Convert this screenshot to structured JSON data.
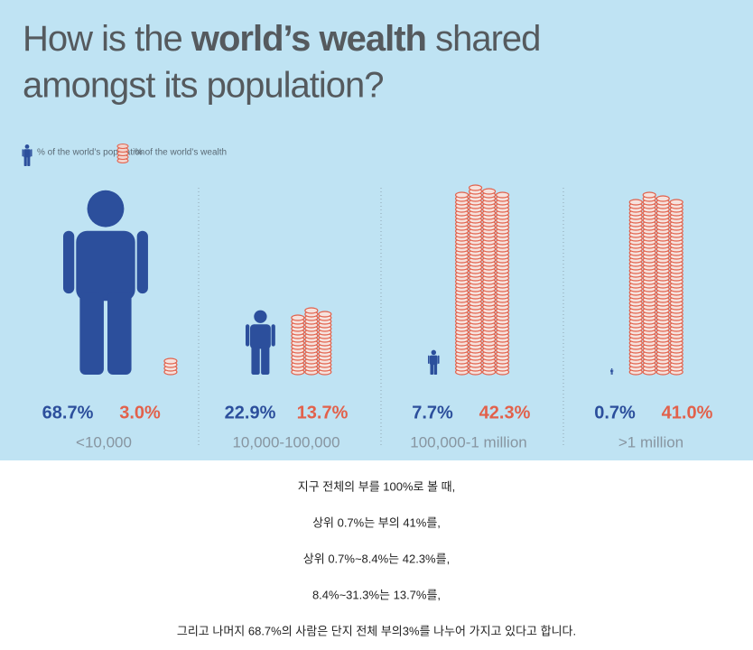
{
  "chart_data": {
    "type": "pictograph",
    "title": [
      "How is the ",
      "world’s wealth",
      " shared",
      "amongst its population?"
    ],
    "categories": [
      "<10,000",
      "10,000-100,000",
      "100,000-1 million",
      ">1 million"
    ],
    "series": [
      {
        "name": "% of the world’s population",
        "color": "#2c4f9c",
        "values": [
          68.7,
          22.9,
          7.7,
          0.7
        ],
        "value_labels": [
          "68.7%",
          "22.9%",
          "7.7%",
          "0.7%"
        ]
      },
      {
        "name": "% of the world’s wealth",
        "color": "#e2614b",
        "values": [
          3.0,
          13.7,
          42.3,
          41.0
        ],
        "value_labels": [
          "3.0%",
          "13.7%",
          "42.3%",
          "41.0%"
        ]
      }
    ]
  },
  "notes": [
    "지구 전체의 부를 100%로 볼 때,",
    "상위 0.7%는 부의 41%를,",
    "상위 0.7%~8.4%는 42.3%를,",
    "8.4%~31.3%는 13.7%를,",
    "그리고 나머지 68.7%의 사람은 단지 전체 부의3%를 나누어 가지고 있다고 합니다."
  ]
}
